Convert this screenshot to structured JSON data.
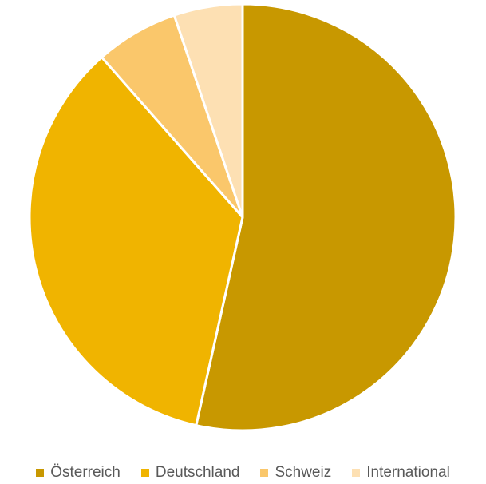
{
  "chart_data": {
    "type": "pie",
    "categories": [
      "Österreich",
      "Deutschland",
      "Schweiz",
      "International"
    ],
    "values": [
      53.5,
      35,
      6.3,
      5.2
    ],
    "colors": [
      "#C89800",
      "#F0B400",
      "#FAC76B",
      "#FDE0B3"
    ],
    "slice_border_color": "#FFFFFF",
    "legend_position": "bottom",
    "start_angle": "top",
    "direction": "clockwise"
  }
}
